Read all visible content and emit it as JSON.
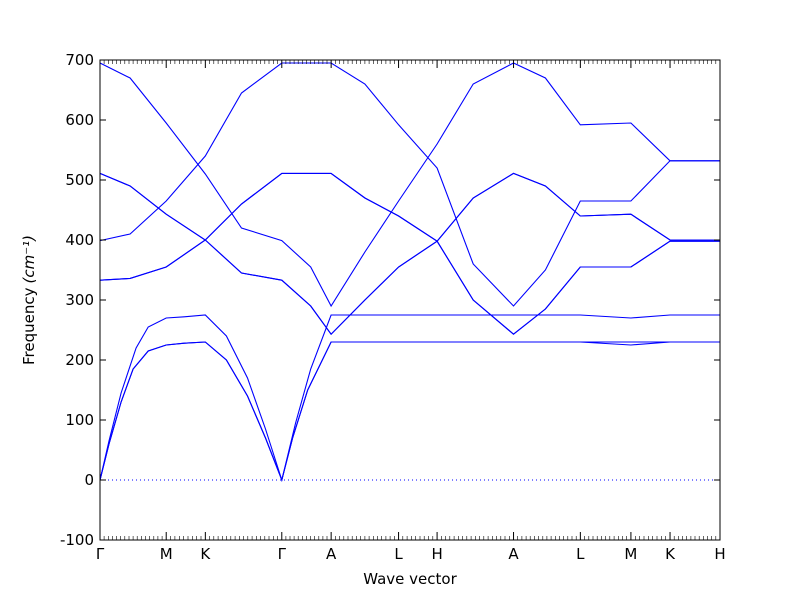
{
  "chart_data": {
    "type": "line",
    "title": "",
    "xlabel": "Wave vector",
    "ylabel": "Frequency",
    "ylabel_unit": "(cm⁻¹)",
    "ylim": [
      -100,
      700
    ],
    "yticks": [
      -100,
      0,
      100,
      200,
      300,
      400,
      500,
      600,
      700
    ],
    "xlim": [
      0,
      10.3
    ],
    "high_symmetry_points": [
      {
        "label": "Γ",
        "x": 0.0
      },
      {
        "label": "M",
        "x": 1.1
      },
      {
        "label": "K",
        "x": 1.75
      },
      {
        "label": "Γ",
        "x": 3.02
      },
      {
        "label": "A",
        "x": 3.84
      },
      {
        "label": "L",
        "x": 4.96
      },
      {
        "label": "H",
        "x": 5.6
      },
      {
        "label": "A",
        "x": 6.87
      },
      {
        "label": "L",
        "x": 7.98
      },
      {
        "label": "M",
        "x": 8.82
      },
      {
        "label": "K",
        "x": 9.47
      },
      {
        "label": "H",
        "x": 10.3
      }
    ],
    "zero_line": 0,
    "series": [
      {
        "values": [
          [
            0,
            0
          ],
          [
            0.15,
            60
          ],
          [
            0.35,
            130
          ],
          [
            0.55,
            185
          ],
          [
            0.8,
            215
          ],
          [
            1.1,
            225
          ],
          [
            1.4,
            228
          ],
          [
            1.75,
            230
          ],
          [
            2.1,
            200
          ],
          [
            2.45,
            140
          ],
          [
            2.75,
            70
          ],
          [
            3.02,
            0
          ],
          [
            3.2,
            70
          ],
          [
            3.45,
            150
          ],
          [
            3.84,
            230
          ],
          [
            10.3,
            230
          ]
        ]
      },
      {
        "values": [
          [
            0,
            0
          ],
          [
            0.15,
            60
          ],
          [
            0.35,
            130
          ],
          [
            0.55,
            185
          ],
          [
            0.8,
            215
          ],
          [
            1.1,
            225
          ],
          [
            1.4,
            228
          ],
          [
            1.75,
            230
          ],
          [
            2.1,
            200
          ],
          [
            2.45,
            140
          ],
          [
            2.75,
            70
          ],
          [
            3.02,
            0
          ],
          [
            3.2,
            70
          ],
          [
            3.45,
            150
          ],
          [
            3.84,
            230
          ],
          [
            7.98,
            230
          ],
          [
            8.82,
            225
          ],
          [
            9.47,
            230
          ],
          [
            10.3,
            230
          ]
        ]
      },
      {
        "values": [
          [
            0,
            0
          ],
          [
            0.15,
            65
          ],
          [
            0.35,
            145
          ],
          [
            0.6,
            220
          ],
          [
            0.8,
            255
          ],
          [
            1.1,
            270
          ],
          [
            1.4,
            272
          ],
          [
            1.75,
            275
          ],
          [
            2.1,
            240
          ],
          [
            2.45,
            170
          ],
          [
            2.75,
            85
          ],
          [
            3.02,
            0
          ],
          [
            3.25,
            95
          ],
          [
            3.5,
            185
          ],
          [
            3.84,
            275
          ],
          [
            7.98,
            275
          ],
          [
            8.82,
            270
          ],
          [
            9.47,
            275
          ],
          [
            10.3,
            275
          ]
        ]
      },
      {
        "values": [
          [
            0,
            333
          ],
          [
            0.5,
            336
          ],
          [
            1.1,
            355
          ],
          [
            1.75,
            400
          ],
          [
            2.35,
            460
          ],
          [
            3.02,
            511
          ],
          [
            3.84,
            511
          ],
          [
            4.4,
            470
          ],
          [
            4.96,
            440
          ],
          [
            5.6,
            398
          ],
          [
            6.2,
            300
          ],
          [
            6.87,
            243
          ],
          [
            7.4,
            285
          ],
          [
            7.98,
            355
          ],
          [
            8.82,
            355
          ],
          [
            9.47,
            398
          ],
          [
            10.3,
            398
          ]
        ]
      },
      {
        "values": [
          [
            0,
            333
          ],
          [
            0.5,
            336
          ],
          [
            1.1,
            355
          ],
          [
            1.75,
            400
          ],
          [
            2.35,
            460
          ],
          [
            3.02,
            511
          ],
          [
            3.84,
            511
          ],
          [
            4.4,
            470
          ],
          [
            4.96,
            440
          ],
          [
            5.6,
            398
          ],
          [
            6.2,
            300
          ],
          [
            6.87,
            243
          ],
          [
            7.4,
            285
          ],
          [
            7.98,
            355
          ],
          [
            8.82,
            355
          ],
          [
            9.47,
            398
          ],
          [
            10.3,
            398
          ]
        ]
      },
      {
        "values": [
          [
            0,
            511
          ],
          [
            0.5,
            490
          ],
          [
            1.1,
            443
          ],
          [
            1.75,
            400
          ],
          [
            2.35,
            345
          ],
          [
            3.02,
            333
          ],
          [
            3.5,
            290
          ],
          [
            3.84,
            243
          ],
          [
            4.4,
            300
          ],
          [
            4.96,
            355
          ],
          [
            5.6,
            398
          ],
          [
            6.2,
            470
          ],
          [
            6.87,
            511
          ],
          [
            7.4,
            490
          ],
          [
            7.98,
            440
          ],
          [
            8.82,
            443
          ],
          [
            9.47,
            400
          ],
          [
            10.3,
            400
          ]
        ]
      },
      {
        "values": [
          [
            0,
            511
          ],
          [
            0.5,
            490
          ],
          [
            1.1,
            443
          ],
          [
            1.75,
            400
          ],
          [
            2.35,
            345
          ],
          [
            3.02,
            333
          ],
          [
            3.5,
            290
          ],
          [
            3.84,
            243
          ],
          [
            4.4,
            300
          ],
          [
            4.96,
            355
          ],
          [
            5.6,
            398
          ],
          [
            6.2,
            470
          ],
          [
            6.87,
            511
          ],
          [
            7.4,
            490
          ],
          [
            7.98,
            440
          ],
          [
            8.82,
            443
          ],
          [
            9.47,
            400
          ],
          [
            10.3,
            400
          ]
        ]
      },
      {
        "values": [
          [
            0,
            399
          ],
          [
            0.5,
            410
          ],
          [
            1.1,
            465
          ],
          [
            1.75,
            540
          ],
          [
            2.35,
            645
          ],
          [
            3.02,
            695
          ],
          [
            3.84,
            695
          ],
          [
            4.4,
            660
          ],
          [
            4.96,
            592
          ],
          [
            5.6,
            520
          ],
          [
            6.2,
            360
          ],
          [
            6.87,
            290
          ],
          [
            7.4,
            350
          ],
          [
            7.98,
            465
          ],
          [
            8.82,
            465
          ],
          [
            9.47,
            532
          ],
          [
            10.3,
            532
          ]
        ]
      },
      {
        "values": [
          [
            0,
            695
          ],
          [
            0.5,
            670
          ],
          [
            1.1,
            595
          ],
          [
            1.75,
            510
          ],
          [
            2.35,
            420
          ],
          [
            3.02,
            399
          ],
          [
            3.5,
            355
          ],
          [
            3.84,
            290
          ],
          [
            4.4,
            380
          ],
          [
            4.96,
            465
          ],
          [
            5.6,
            560
          ],
          [
            6.2,
            660
          ],
          [
            6.87,
            695
          ],
          [
            7.4,
            670
          ],
          [
            7.98,
            592
          ],
          [
            8.82,
            595
          ],
          [
            9.47,
            532
          ],
          [
            10.3,
            532
          ]
        ]
      }
    ]
  }
}
